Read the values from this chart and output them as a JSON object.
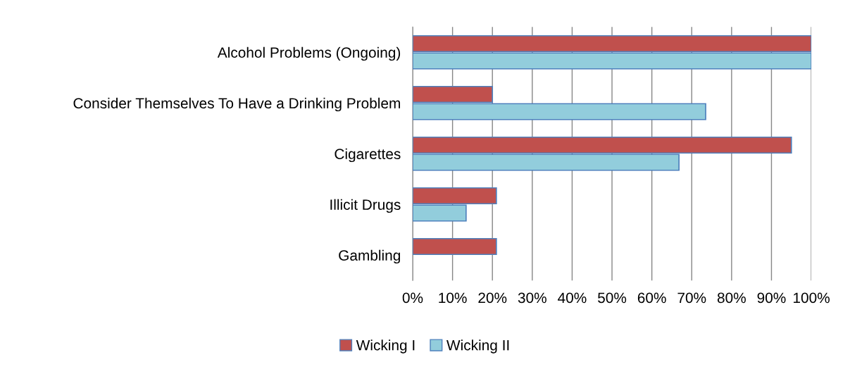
{
  "chart_data": {
    "type": "bar",
    "orientation": "horizontal",
    "categories": [
      "Alcohol Problems (Ongoing)",
      "Consider Themselves To Have a Drinking Problem",
      "Cigarettes",
      "Illicit Drugs",
      "Gambling"
    ],
    "series": [
      {
        "name": "Wicking I",
        "color": "#c0504d",
        "values": [
          100,
          20,
          95,
          21,
          21
        ]
      },
      {
        "name": "Wicking II",
        "color": "#92cddc",
        "values": [
          100,
          73.5,
          66.8,
          13.4,
          null
        ]
      }
    ],
    "xlim": [
      0,
      100
    ],
    "xticks": [
      {
        "value": 0,
        "label": "0%"
      },
      {
        "value": 10,
        "label": "10%"
      },
      {
        "value": 20,
        "label": "20%"
      },
      {
        "value": 30,
        "label": "30%"
      },
      {
        "value": 40,
        "label": "40%"
      },
      {
        "value": 50,
        "label": "50%"
      },
      {
        "value": 60,
        "label": "60%"
      },
      {
        "value": 70,
        "label": "70%"
      },
      {
        "value": 80,
        "label": "80%"
      },
      {
        "value": 90,
        "label": "90%"
      },
      {
        "value": 100,
        "label": "100%"
      }
    ],
    "grid": "x",
    "legend": "bottom"
  }
}
